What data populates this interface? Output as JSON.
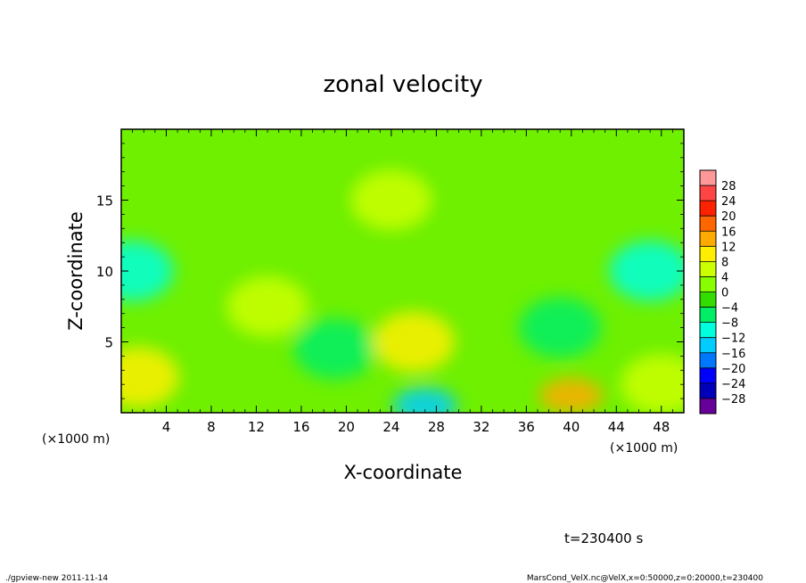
{
  "chart_data": {
    "type": "heatmap",
    "title": "zonal velocity",
    "xlabel": "X-coordinate",
    "ylabel": "Z-coordinate",
    "x_unit_left": "(×1000 m)",
    "x_unit_right": "(×1000 m)",
    "xlim": [
      0,
      50
    ],
    "ylim": [
      0,
      20
    ],
    "x_ticks": [
      "4",
      "8",
      "12",
      "16",
      "20",
      "24",
      "28",
      "32",
      "36",
      "40",
      "44",
      "48"
    ],
    "y_ticks": [
      "5",
      "10",
      "15"
    ],
    "colorbar": {
      "labels": [
        "28",
        "24",
        "20",
        "16",
        "12",
        "8",
        "4",
        "0",
        "−4",
        "−8",
        "−12",
        "−16",
        "−20",
        "−24",
        "−28"
      ],
      "colors": [
        "#ff9999",
        "#ff4444",
        "#ff2200",
        "#ff6600",
        "#ffaa00",
        "#ffee00",
        "#ccff00",
        "#88ff00",
        "#33dd00",
        "#00ee66",
        "#00ffdd",
        "#00ccff",
        "#0077ff",
        "#0000ff",
        "#0000bb",
        "#660099"
      ]
    },
    "features": [
      {
        "x": 27,
        "z": 0.5,
        "value": -14
      },
      {
        "x": 1,
        "z": 10,
        "value": -10
      },
      {
        "x": 47,
        "z": 10,
        "value": -10
      },
      {
        "x": 19,
        "z": 4.5,
        "value": -8
      },
      {
        "x": 40,
        "z": 1.2,
        "value": 12
      },
      {
        "x": 26,
        "z": 5,
        "value": 8
      },
      {
        "x": 1.5,
        "z": 2.5,
        "value": 8
      },
      {
        "x": 48,
        "z": 2,
        "value": 6
      },
      {
        "x": 13,
        "z": 7.5,
        "value": 6
      },
      {
        "x": 24,
        "z": 15,
        "value": 4
      },
      {
        "x": 39,
        "z": 6,
        "value": -6
      }
    ]
  },
  "time_label": "t=230400 s",
  "footer_left": "./gpview-new   2011-11-14",
  "footer_right": "MarsCond_VelX.nc@VelX,x=0:50000,z=0:20000,t=230400"
}
